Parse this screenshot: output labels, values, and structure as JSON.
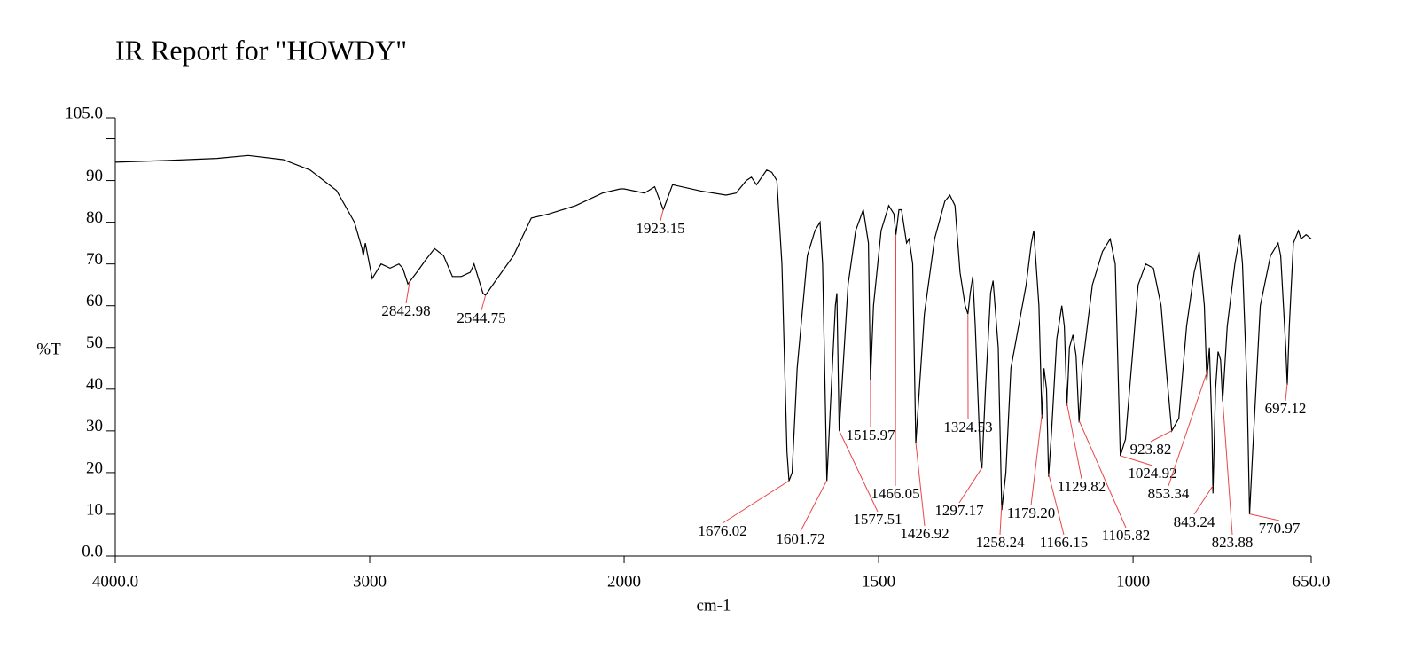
{
  "chart_data": {
    "type": "line",
    "title": "IR Report for \"HOWDY\"",
    "xlabel": "cm-1",
    "ylabel": "%T",
    "xlim": [
      4000,
      650
    ],
    "ylim": [
      0,
      105
    ],
    "x_scale_break": 2000,
    "x_scale_ratio": 2,
    "xticks": [
      {
        "value": 4000,
        "label": "4000.0"
      },
      3000,
      2000,
      1500,
      1000,
      {
        "value": 650,
        "label": "650.0"
      }
    ],
    "yticks": [
      {
        "value": 0,
        "label": "0.0"
      },
      10,
      20,
      30,
      40,
      50,
      60,
      70,
      80,
      90,
      {
        "value": 105,
        "label": "105.0"
      }
    ],
    "yticks_minor": [
      100
    ],
    "x": [
      4000,
      3800,
      3600,
      3477,
      3340,
      3234,
      3130,
      3060,
      3030,
      3025,
      3017,
      2990,
      2955,
      2920,
      2885,
      2870,
      2850,
      2815,
      2780,
      2745,
      2710,
      2675,
      2640,
      2605,
      2590,
      2555,
      2545,
      2505,
      2435,
      2365,
      2295,
      2190,
      2085,
      2015,
      2000,
      1960,
      1940,
      1923,
      1905,
      1850,
      1800,
      1780,
      1760,
      1750,
      1740,
      1720,
      1710,
      1700,
      1690,
      1680,
      1676,
      1670,
      1660,
      1640,
      1625,
      1615,
      1610,
      1601.7,
      1595,
      1585,
      1582,
      1577.5,
      1570,
      1560,
      1545,
      1530,
      1520,
      1516,
      1510,
      1495,
      1480,
      1470,
      1466,
      1460,
      1455,
      1445,
      1440,
      1433,
      1427,
      1420,
      1410,
      1390,
      1370,
      1360,
      1350,
      1340,
      1330,
      1324.5,
      1320,
      1315,
      1310,
      1300,
      1297,
      1290,
      1280,
      1275,
      1265,
      1258,
      1250,
      1240,
      1225,
      1210,
      1200,
      1195,
      1185,
      1179,
      1175,
      1170,
      1166,
      1160,
      1150,
      1140,
      1135,
      1130,
      1125,
      1118,
      1112,
      1106,
      1100,
      1080,
      1060,
      1045,
      1035,
      1025,
      1015,
      1000,
      990,
      975,
      960,
      945,
      935,
      924,
      910,
      895,
      880,
      870,
      860,
      855,
      850,
      845,
      843,
      838,
      833,
      828,
      824,
      815,
      800,
      790,
      785,
      776,
      771,
      765,
      750,
      730,
      715,
      710,
      700,
      697,
      693,
      685,
      675,
      670,
      660,
      650
    ],
    "series": [
      {
        "name": "%T",
        "color": "#000000",
        "values": [
          94.4,
          94.8,
          95.3,
          96,
          95,
          92.5,
          87.6,
          80,
          73.7,
          72,
          75,
          66.5,
          70,
          69,
          70,
          69,
          65.2,
          68,
          71,
          73.7,
          72,
          67,
          67,
          68,
          70,
          63,
          62.5,
          66,
          72,
          81,
          82,
          84,
          87,
          88,
          88,
          87,
          88.5,
          83,
          89,
          87.5,
          86.5,
          87,
          90,
          90.8,
          89,
          92.5,
          92,
          90,
          70,
          25,
          18,
          20,
          45,
          72,
          78,
          80,
          70,
          18,
          35,
          60,
          63,
          30,
          45,
          65,
          78,
          83,
          75,
          42,
          60,
          78,
          84,
          82,
          77,
          83,
          83,
          75,
          76,
          70,
          27,
          40,
          58,
          76,
          85,
          86.5,
          84,
          68,
          60,
          58,
          63,
          67,
          55,
          23,
          21,
          40,
          63,
          66,
          50,
          11,
          20,
          45,
          55,
          65,
          75,
          78,
          60,
          33,
          45,
          40,
          19,
          30,
          52,
          60,
          55,
          36,
          50,
          53,
          48,
          32,
          45,
          65,
          73,
          76,
          70,
          24,
          28,
          50,
          65,
          70,
          69,
          60,
          45,
          30,
          33,
          55,
          68,
          73,
          60,
          42,
          50,
          30,
          15,
          40,
          49,
          47,
          37,
          55,
          70,
          77,
          70,
          40,
          10,
          25,
          60,
          72,
          75,
          72,
          50,
          41,
          55,
          75,
          78,
          76,
          77,
          76
        ]
      }
    ],
    "peaks": [
      {
        "value": 2842.98,
        "label": "2842.98"
      },
      {
        "value": 2544.75,
        "label": "2544.75"
      },
      {
        "value": 1923.15,
        "label": "1923.15"
      },
      {
        "value": 1676.02,
        "label": "1676.02"
      },
      {
        "value": 1601.72,
        "label": "1601.72"
      },
      {
        "value": 1577.51,
        "label": "1577.51"
      },
      {
        "value": 1515.97,
        "label": "1515.97"
      },
      {
        "value": 1466.05,
        "label": "1466.05"
      },
      {
        "value": 1426.92,
        "label": "1426.92"
      },
      {
        "value": 1324.53,
        "label": "1324.53"
      },
      {
        "value": 1297.17,
        "label": "1297.17"
      },
      {
        "value": 1258.24,
        "label": "1258.24"
      },
      {
        "value": 1179.2,
        "label": "1179.20"
      },
      {
        "value": 1166.15,
        "label": "1166.15"
      },
      {
        "value": 1129.82,
        "label": "1129.82"
      },
      {
        "value": 1105.82,
        "label": "1105.82"
      },
      {
        "value": 1024.92,
        "label": "1024.92"
      },
      {
        "value": 923.82,
        "label": "923.82"
      },
      {
        "value": 853.34,
        "label": "853.34"
      },
      {
        "value": 843.24,
        "label": "843.24"
      },
      {
        "value": 823.88,
        "label": "823.88"
      },
      {
        "value": 770.97,
        "label": "770.97"
      },
      {
        "value": 697.12,
        "label": "697.12"
      }
    ]
  }
}
